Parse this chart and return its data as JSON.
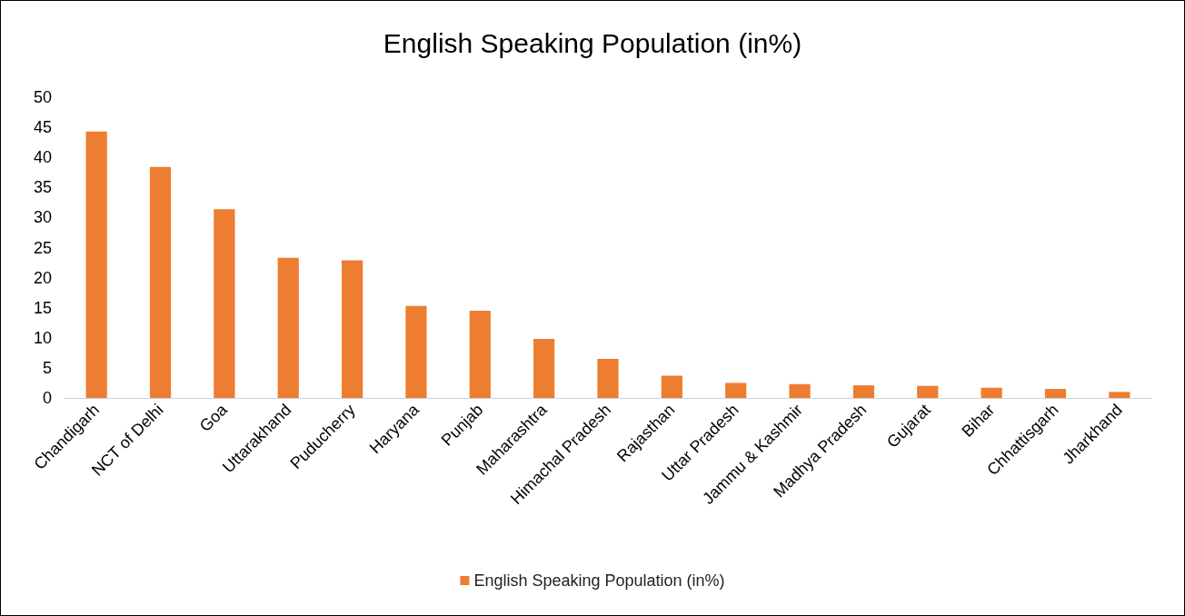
{
  "chart_data": {
    "type": "bar",
    "title": "English Speaking Population (in%)",
    "categories": [
      "Chandigarh",
      "NCT of Delhi",
      "Goa",
      "Uttarakhand",
      "Puducherry",
      "Haryana",
      "Punjab",
      "Maharashtra",
      "Himachal Pradesh",
      "Rajasthan",
      "Uttar Pradesh",
      "Jammu & Kashmir",
      "Madhya Pradesh",
      "Gujarat",
      "Bihar",
      "Chhattisgarh",
      "Jharkhand"
    ],
    "series": [
      {
        "name": "English Speaking Population (in%)",
        "color": "#ed7d31",
        "values": [
          44.3,
          38.4,
          31.4,
          23.3,
          22.9,
          15.3,
          14.5,
          9.8,
          6.5,
          3.7,
          2.5,
          2.3,
          2.1,
          2.0,
          1.7,
          1.5,
          1.0
        ]
      }
    ],
    "ylim": [
      0,
      50
    ],
    "yticks": [
      0,
      5,
      10,
      15,
      20,
      25,
      30,
      35,
      40,
      45,
      50
    ],
    "grid": false,
    "legend": "bottom"
  }
}
